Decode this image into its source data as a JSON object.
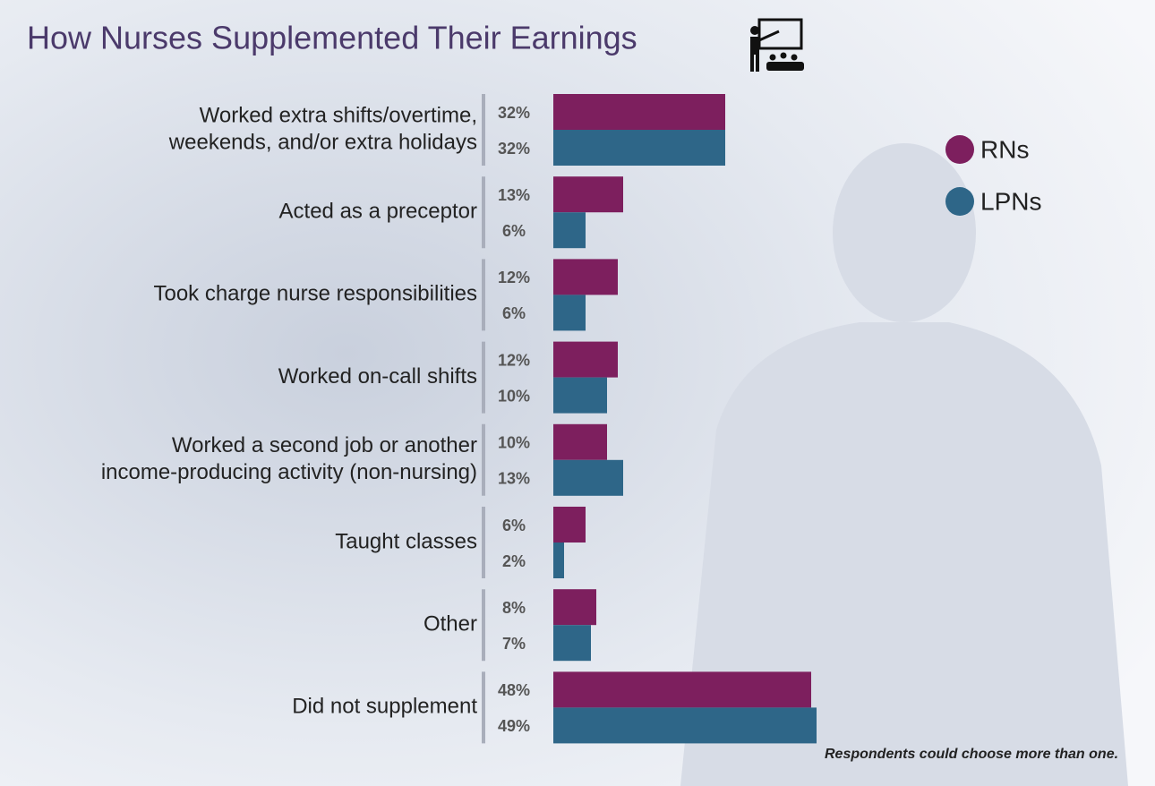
{
  "chart_data": {
    "type": "hbar",
    "title": "How Nurses Supplemented Their Earnings",
    "categories": [
      [
        "Worked extra shifts/overtime,",
        "weekends, and/or extra holidays"
      ],
      [
        "Acted as a preceptor"
      ],
      [
        "Took charge nurse responsibilities"
      ],
      [
        "Worked on-call shifts"
      ],
      [
        "Worked a second job or another",
        "income-producing activity (non-nursing)"
      ],
      [
        "Taught classes"
      ],
      [
        "Other"
      ],
      [
        "Did not supplement"
      ]
    ],
    "series": [
      {
        "name": "RNs",
        "color": "#7d1f5e",
        "values": [
          32,
          13,
          12,
          12,
          10,
          6,
          8,
          48
        ],
        "value_labels": [
          "32%",
          "13%",
          "12%",
          "12%",
          "10%",
          "6%",
          "8%",
          "48%"
        ]
      },
      {
        "name": "LPNs",
        "color": "#2e6688",
        "values": [
          32,
          6,
          6,
          10,
          13,
          2,
          7,
          49
        ],
        "value_labels": [
          "32%",
          "6%",
          "6%",
          "10%",
          "13%",
          "2%",
          "7%",
          "49%"
        ]
      }
    ],
    "legend": "upper right",
    "note": "Respondents could choose more than one."
  }
}
